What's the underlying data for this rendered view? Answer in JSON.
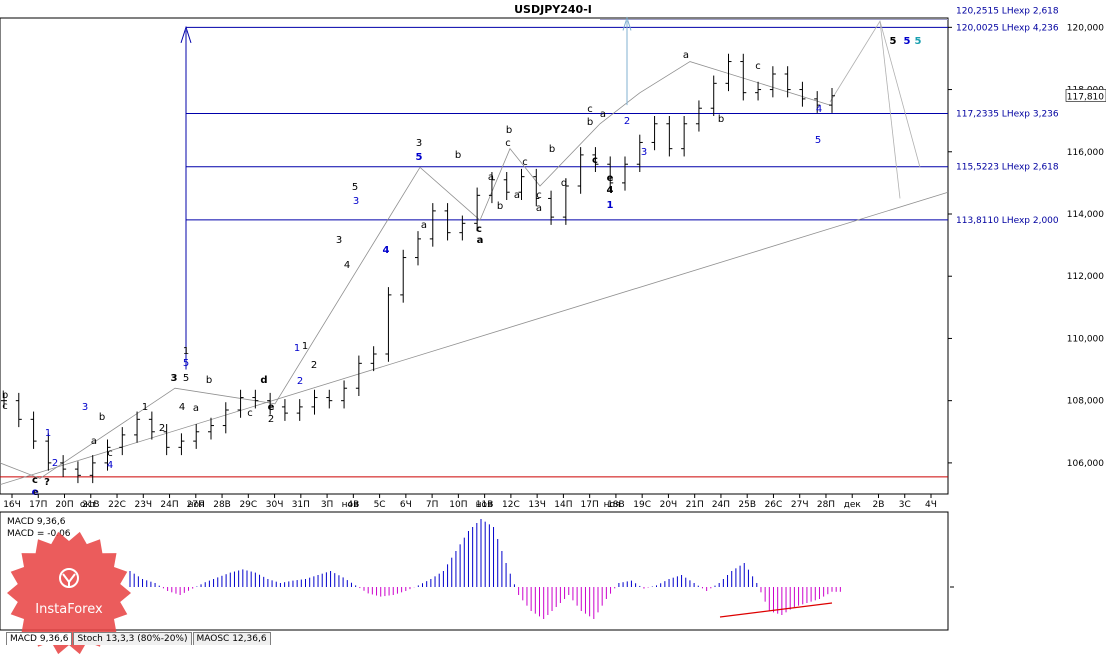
{
  "chart_data": {
    "type": "candlestick",
    "title": "USDJPY240-I",
    "price_axis": {
      "ticks": [
        "120,000",
        "118,000",
        "116,000",
        "114,000",
        "112,000",
        "110,000",
        "108,000",
        "106,000"
      ],
      "current_price": "117,810",
      "ylim": [
        105.0,
        120.3
      ]
    },
    "time_axis": [
      "16Ч",
      "17П",
      "20П",
      "21В",
      "22С",
      "23Ч",
      "24П",
      "27П",
      "28В",
      "29С",
      "30Ч",
      "31П",
      "3П",
      "4В",
      "5С",
      "6Ч",
      "7П",
      "10П",
      "11В",
      "12С",
      "13Ч",
      "14П",
      "17П",
      "18В",
      "19С",
      "20Ч",
      "21П",
      "24П",
      "25В",
      "26С",
      "27Ч",
      "28П",
      "дек",
      "2В",
      "3С",
      "4Ч"
    ],
    "time_axis_overlays": [
      "e",
      "окт",
      "ноя",
      "ноя",
      "ноя",
      "ноя"
    ],
    "levels": [
      {
        "label": "120,2515 LHexp 2,618",
        "price": 120.25
      },
      {
        "label": "120,0025 LHexp 4,236",
        "price": 120.0
      },
      {
        "label": "117,2335 LHexp 3,236",
        "price": 117.23
      },
      {
        "label": "115,5223 LHexp 2,618",
        "price": 115.52
      },
      {
        "label": "113,8110 LHexp 2,000",
        "price": 113.81
      },
      {
        "label": "",
        "price": 105.55
      }
    ],
    "close_prices": [
      108.0,
      107.4,
      106.7,
      106.0,
      105.8,
      105.6,
      106.0,
      106.5,
      106.9,
      107.4,
      107.0,
      106.5,
      106.7,
      107.0,
      107.2,
      107.7,
      108.1,
      108.0,
      107.8,
      107.6,
      107.8,
      108.1,
      108.0,
      108.4,
      109.2,
      109.5,
      111.4,
      112.6,
      113.2,
      114.1,
      113.4,
      113.7,
      114.6,
      115.1,
      114.7,
      115.2,
      114.5,
      113.9,
      114.9,
      115.9,
      115.6,
      115.0,
      115.6,
      116.3,
      116.9,
      116.1,
      116.9,
      117.4,
      118.2,
      118.9,
      117.9,
      118.0,
      118.5,
      118.0,
      117.7,
      117.5,
      117.8
    ],
    "wave_labels": [
      {
        "text": "b",
        "color": "#000000"
      },
      {
        "text": "c",
        "color": "#000000"
      },
      {
        "text": "c",
        "color": "#000000"
      },
      {
        "text": "e",
        "color": "#0000cc"
      },
      {
        "text": "?",
        "color": "#000000"
      },
      {
        "text": "1",
        "color": "#0000cc"
      },
      {
        "text": "2",
        "color": "#0000cc"
      },
      {
        "text": "3",
        "color": "#0000cc"
      },
      {
        "text": "a",
        "color": "#000000"
      },
      {
        "text": "b",
        "color": "#000000"
      },
      {
        "text": "c",
        "color": "#000000"
      },
      {
        "text": "4",
        "color": "#0000cc"
      },
      {
        "text": "1",
        "color": "#000000"
      },
      {
        "text": "2",
        "color": "#000000"
      },
      {
        "text": "3",
        "color": "#000000"
      },
      {
        "text": "4",
        "color": "#000000"
      },
      {
        "text": "5",
        "color": "#000000"
      },
      {
        "text": "1",
        "color": "#000000"
      },
      {
        "text": "5",
        "color": "#0000cc"
      },
      {
        "text": "a",
        "color": "#000000"
      },
      {
        "text": "b",
        "color": "#000000"
      },
      {
        "text": "c",
        "color": "#000000"
      },
      {
        "text": "d",
        "color": "#000000"
      },
      {
        "text": "e",
        "color": "#000000"
      },
      {
        "text": "2",
        "color": "#000000"
      },
      {
        "text": "1",
        "color": "#0000cc"
      },
      {
        "text": "2",
        "color": "#0000cc"
      },
      {
        "text": "1",
        "color": "#000000"
      },
      {
        "text": "2",
        "color": "#000000"
      },
      {
        "text": "3",
        "color": "#000000"
      },
      {
        "text": "4",
        "color": "#000000"
      },
      {
        "text": "5",
        "color": "#000000"
      },
      {
        "text": "3",
        "color": "#0000cc"
      },
      {
        "text": "4",
        "color": "#0000cc"
      },
      {
        "text": "3",
        "color": "#000000"
      },
      {
        "text": "5",
        "color": "#0000cc"
      },
      {
        "text": "a",
        "color": "#000000"
      },
      {
        "text": "b",
        "color": "#000000"
      },
      {
        "text": "c",
        "color": "#000000"
      },
      {
        "text": "a",
        "color": "#000000"
      },
      {
        "text": "a",
        "color": "#000000"
      },
      {
        "text": "b",
        "color": "#000000"
      },
      {
        "text": "b",
        "color": "#000000"
      },
      {
        "text": "c",
        "color": "#000000"
      },
      {
        "text": "a",
        "color": "#000000"
      },
      {
        "text": "c",
        "color": "#000000"
      },
      {
        "text": "c",
        "color": "#000000"
      },
      {
        "text": "a",
        "color": "#000000"
      },
      {
        "text": "b",
        "color": "#000000"
      },
      {
        "text": "d",
        "color": "#000000"
      },
      {
        "text": "c",
        "color": "#000000"
      },
      {
        "text": "b",
        "color": "#000000"
      },
      {
        "text": "a",
        "color": "#000000"
      },
      {
        "text": "c",
        "color": "#000000"
      },
      {
        "text": "e",
        "color": "#000000"
      },
      {
        "text": "4",
        "color": "#000000"
      },
      {
        "text": "1",
        "color": "#0000cc"
      },
      {
        "text": "2",
        "color": "#0000cc"
      },
      {
        "text": "3",
        "color": "#0000cc"
      },
      {
        "text": "a",
        "color": "#000000"
      },
      {
        "text": "b",
        "color": "#000000"
      },
      {
        "text": "c",
        "color": "#000000"
      },
      {
        "text": "4",
        "color": "#0000cc"
      },
      {
        "text": "5",
        "color": "#0000cc"
      },
      {
        "text": "5",
        "color": "#000000"
      },
      {
        "text": "5",
        "color": "#0000cc"
      },
      {
        "text": "5",
        "color": "#1aa0b0"
      }
    ],
    "macd": {
      "label_1": "MACD 9,36,6",
      "label_2": "MACD = -0.06",
      "values": [
        0.2,
        0.1,
        0.05,
        -0.05,
        -0.1,
        -0.02,
        0.06,
        0.12,
        0.18,
        0.22,
        0.18,
        0.1,
        0.05,
        0.08,
        0.1,
        0.15,
        0.2,
        0.12,
        0.02,
        -0.08,
        -0.12,
        -0.1,
        -0.05,
        0.02,
        0.1,
        0.2,
        0.45,
        0.7,
        0.85,
        0.75,
        0.3,
        -0.1,
        -0.3,
        -0.4,
        -0.25,
        -0.1,
        -0.3,
        -0.4,
        -0.15,
        0.05,
        0.08,
        -0.02,
        0.02,
        0.1,
        0.15,
        0.05,
        -0.05,
        0.05,
        0.2,
        0.3,
        0.05,
        -0.3,
        -0.35,
        -0.25,
        -0.2,
        -0.15,
        -0.06
      ]
    },
    "indicator_tabs": [
      "MACD 9,36,6",
      "Stoch 13,3,3 (80%-20%)",
      "MAOSC 12,36,6"
    ]
  },
  "logo": {
    "text": "InstaForex"
  },
  "colors": {
    "level_line": "#0000aa",
    "support_line": "#cc0000",
    "macd_pos": "#0000cc",
    "macd_neg": "#cc00cc",
    "divergence": "#dd0000"
  }
}
